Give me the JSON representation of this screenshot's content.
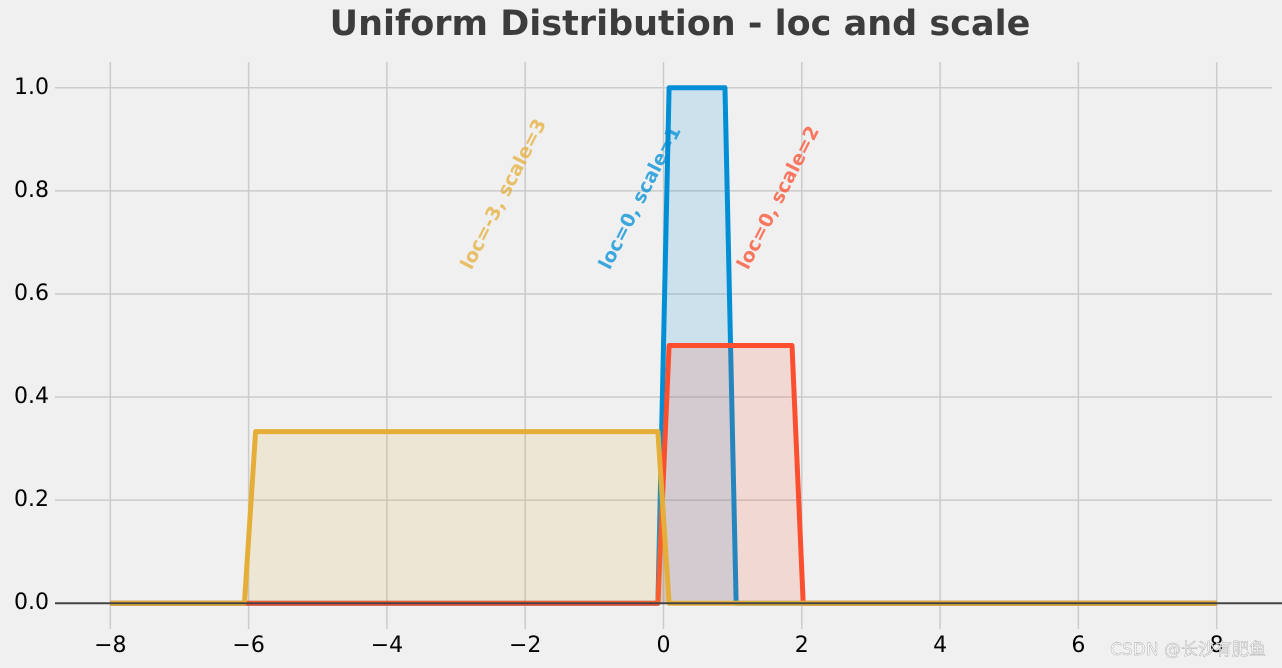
{
  "chart_data": {
    "type": "line",
    "title": "Uniform Distribution - loc and scale",
    "series": [
      {
        "name": "loc=0, scale=1",
        "color": "#008fd5",
        "x": [
          -8,
          -0.0808,
          0.0808,
          0.8889,
          1.0505,
          8
        ],
        "values": [
          0,
          0,
          1,
          1,
          0,
          0
        ]
      },
      {
        "name": "loc=0, scale=2",
        "color": "#fc4f30",
        "x": [
          -8,
          -0.0808,
          0.0808,
          1.8586,
          2.0202,
          8
        ],
        "values": [
          0,
          0,
          0.5,
          0.5,
          0,
          0
        ]
      },
      {
        "name": "loc=-3, scale=3",
        "color": "#e5ae38",
        "x": [
          -8,
          -6.0606,
          -5.899,
          -0.0808,
          0.0808,
          8
        ],
        "values": [
          0,
          0,
          0.333,
          0.333,
          0,
          0
        ]
      }
    ],
    "xlim": [
      -8.8,
      8.8
    ],
    "xticks": [
      {
        "value": -8,
        "label": "−8"
      },
      {
        "value": -6,
        "label": "−6"
      },
      {
        "value": -4,
        "label": "−4"
      },
      {
        "value": -2,
        "label": "−2"
      },
      0,
      2,
      4,
      6,
      8
    ],
    "ylim": [
      -0.05,
      1.05
    ],
    "yticks": [
      {
        "value": 0,
        "label": "0.0"
      },
      0.2,
      0.4,
      0.6,
      0.8,
      {
        "value": 1,
        "label": "1.0"
      }
    ],
    "grid": true,
    "watermark": "CSDN @长沙有肥鱼"
  }
}
